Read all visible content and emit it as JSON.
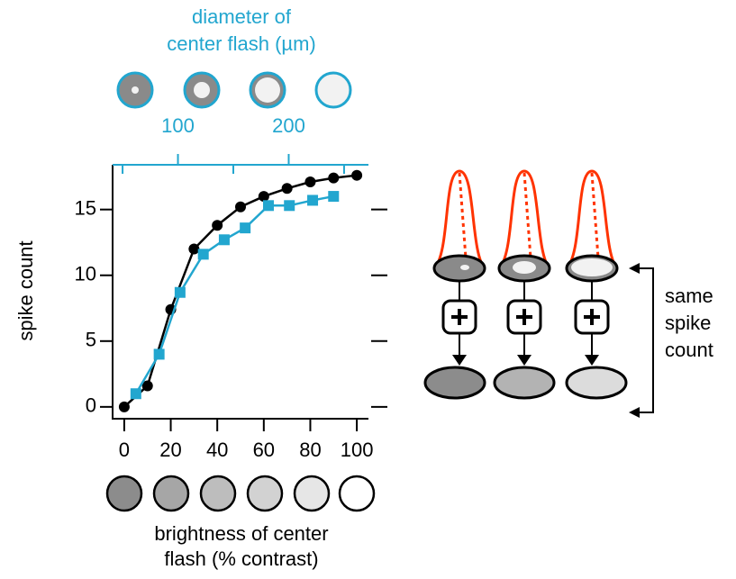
{
  "chart_data": {
    "type": "line",
    "x_label": [
      "brightness of center",
      "flash (% contrast)"
    ],
    "y_label": "spike count",
    "x2_label": [
      "diameter of",
      "center flash (µm)"
    ],
    "xlim": [
      -5,
      105
    ],
    "xticks": [
      0,
      20,
      40,
      60,
      80,
      100
    ],
    "ylim": [
      -0.9,
      18.4
    ],
    "yticks": [
      0,
      5,
      10,
      15
    ],
    "x2lim": [
      41,
      272
    ],
    "x2ticks": [
      100,
      200
    ],
    "x2minor_ticks": [
      50,
      150,
      250
    ],
    "x2color": "#22a6cf",
    "series": [
      {
        "color": "#000000",
        "marker": "circle",
        "x": [
          0,
          10,
          20,
          30,
          40,
          50,
          60,
          70,
          80,
          90,
          100
        ],
        "values": [
          0,
          1.6,
          7.4,
          12,
          13.8,
          15.2,
          16,
          16.6,
          17.1,
          17.4,
          17.6
        ]
      },
      {
        "color": "#22a6cf",
        "marker": "square",
        "x": [
          5,
          15,
          24,
          34,
          43,
          52,
          62,
          71,
          81,
          90
        ],
        "values": [
          1.0,
          4.0,
          8.7,
          11.6,
          12.7,
          13.6,
          15.3,
          15.3,
          15.7,
          16.0
        ]
      }
    ],
    "annotation": [
      "same",
      "spike",
      "count"
    ]
  }
}
